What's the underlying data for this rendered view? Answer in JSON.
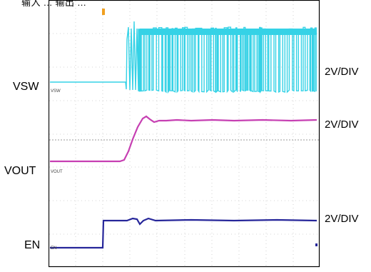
{
  "caption": "输入 ... 输出 ...",
  "channels": [
    {
      "name": "VSW",
      "tag": "VSW",
      "scale": "2V/DIV",
      "color": "#35d2e6"
    },
    {
      "name": "VOUT",
      "tag": "VOUT",
      "scale": "2V/DIV",
      "color": "#c63fb2"
    },
    {
      "name": "EN",
      "tag": "EN",
      "scale": "2V/DIV",
      "color": "#26269a"
    }
  ],
  "colors": {
    "grid": "#c8c8c8",
    "frame": "#000000",
    "trigger_marker": "#f0a020"
  }
}
